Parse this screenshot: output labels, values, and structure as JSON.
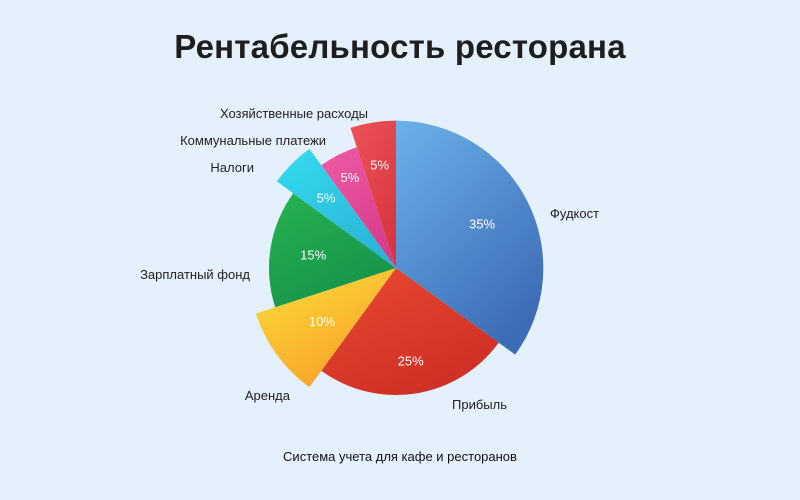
{
  "title": "Рентабельность ресторана",
  "caption": "Система учета для кафе и ресторанов",
  "chart_data": {
    "type": "pie",
    "title": "Рентабельность ресторана",
    "unit": "%",
    "slices": [
      {
        "label": "Фудкост",
        "value": 35,
        "value_label": "35%",
        "color_light": "#6ab1ea",
        "color_dark": "#3e6db7",
        "exploded": true
      },
      {
        "label": "Прибыль",
        "value": 25,
        "value_label": "25%",
        "color_light": "#e94a32",
        "color_dark": "#cf2f25",
        "exploded": false
      },
      {
        "label": "Аренда",
        "value": 10,
        "value_label": "10%",
        "color_light": "#fde03a",
        "color_dark": "#f7a129",
        "exploded": true
      },
      {
        "label": "Зарплатный фонд",
        "value": 15,
        "value_label": "15%",
        "color_light": "#27b350",
        "color_dark": "#16934a",
        "exploded": false
      },
      {
        "label": "Налоги",
        "value": 5,
        "value_label": "5%",
        "color_light": "#35dcef",
        "color_dark": "#2ab4d8",
        "exploded": true
      },
      {
        "label": "Коммунальные платежи",
        "value": 5,
        "value_label": "5%",
        "color_light": "#f05ba5",
        "color_dark": "#d63c8a",
        "exploded": false
      },
      {
        "label": "Хозяйственные расходы",
        "value": 5,
        "value_label": "5%",
        "color_light": "#ee5359",
        "color_dark": "#d8363f",
        "exploded": true
      }
    ]
  }
}
